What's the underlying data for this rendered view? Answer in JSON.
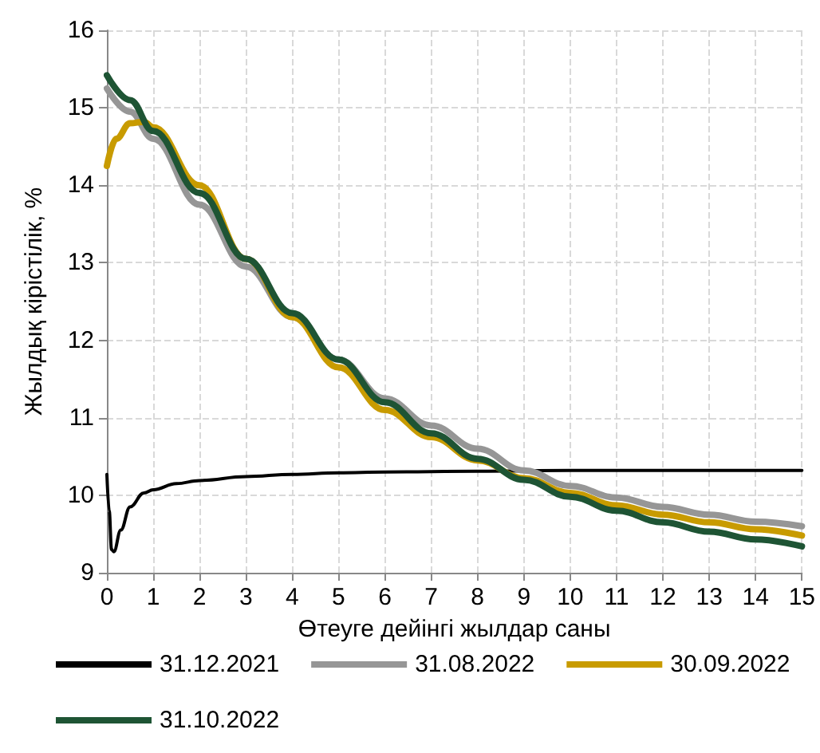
{
  "chart_data": {
    "type": "line",
    "xlabel": "Өтеуге дейінгі жылдар саны",
    "ylabel": "Жылдық кірістілік, %",
    "xlim": [
      0,
      15
    ],
    "xticks": [
      0,
      1,
      2,
      3,
      4,
      5,
      6,
      7,
      8,
      9,
      10,
      11,
      12,
      13,
      14,
      15
    ],
    "ylim": [
      9,
      16
    ],
    "yticks": [
      9,
      10,
      11,
      12,
      13,
      14,
      15,
      16
    ],
    "grid": true,
    "legend": "bottom",
    "marker": "none",
    "line_style": "solid",
    "series": [
      {
        "name": "31.12.2021",
        "color": "#000000",
        "x": [
          0,
          0.05,
          0.1,
          0.15,
          0.3,
          0.5,
          0.8,
          1,
          1.5,
          2,
          3,
          4,
          5,
          6,
          8,
          10,
          15
        ],
        "values": [
          10.27,
          9.8,
          9.3,
          9.27,
          9.55,
          9.85,
          10.03,
          10.07,
          10.15,
          10.19,
          10.24,
          10.27,
          10.29,
          10.3,
          10.31,
          10.32,
          10.32
        ]
      },
      {
        "name": "31.08.2022",
        "color": "#969696",
        "x": [
          0,
          0.5,
          1,
          2,
          3,
          4,
          5,
          6,
          7,
          8,
          9,
          10,
          11,
          12,
          13,
          14,
          15
        ],
        "values": [
          15.25,
          14.95,
          14.6,
          13.75,
          12.95,
          12.3,
          11.75,
          11.25,
          10.9,
          10.6,
          10.32,
          10.12,
          9.97,
          9.85,
          9.75,
          9.66,
          9.6
        ]
      },
      {
        "name": "30.09.2022",
        "color": "#c89b00",
        "x": [
          0,
          0.2,
          0.5,
          0.8,
          1,
          2,
          3,
          4,
          5,
          6,
          7,
          8,
          9,
          10,
          11,
          12,
          13,
          14,
          15
        ],
        "values": [
          14.25,
          14.6,
          14.8,
          14.82,
          14.75,
          14.0,
          13.05,
          12.3,
          11.65,
          11.1,
          10.75,
          10.45,
          10.22,
          10.03,
          9.87,
          9.75,
          9.65,
          9.56,
          9.48
        ]
      },
      {
        "name": "31.10.2022",
        "color": "#1e5434",
        "x": [
          0,
          0.5,
          1,
          2,
          3,
          4,
          5,
          6,
          7,
          8,
          9,
          10,
          11,
          12,
          13,
          14,
          15
        ],
        "values": [
          15.42,
          15.1,
          14.7,
          13.9,
          13.05,
          12.35,
          11.75,
          11.2,
          10.8,
          10.47,
          10.2,
          9.98,
          9.8,
          9.65,
          9.53,
          9.43,
          9.34
        ]
      }
    ]
  }
}
